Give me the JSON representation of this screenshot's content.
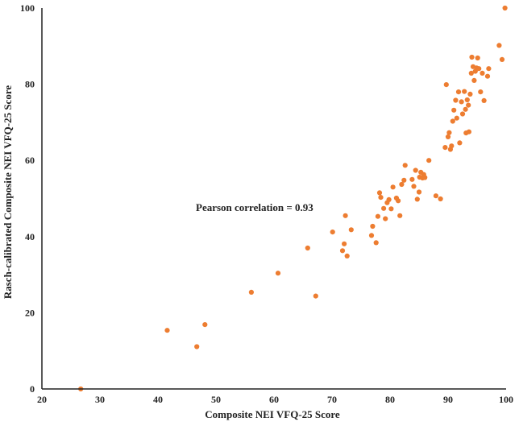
{
  "chart_data": {
    "type": "scatter",
    "title": "",
    "xlabel": "Composite NEI VFQ-25 Score",
    "ylabel": "Rasch-calibrated Composite NEI VFQ-25 Score",
    "xlim": [
      20,
      100
    ],
    "ylim": [
      0,
      100
    ],
    "xticks": [
      20,
      30,
      40,
      50,
      60,
      70,
      80,
      90,
      100
    ],
    "yticks": [
      0,
      20,
      40,
      60,
      80,
      100
    ],
    "grid": false,
    "annotation": "Pearson correlation = 0.93",
    "point_color": "#ED7D31",
    "points": [
      [
        26.7,
        0
      ],
      [
        41.6,
        15.4
      ],
      [
        46.7,
        11.1
      ],
      [
        48.1,
        16.9
      ],
      [
        56.1,
        25.4
      ],
      [
        60.7,
        30.4
      ],
      [
        65.8,
        37.0
      ],
      [
        67.2,
        24.4
      ],
      [
        70.1,
        41.2
      ],
      [
        71.8,
        36.3
      ],
      [
        72.1,
        38.1
      ],
      [
        72.3,
        45.5
      ],
      [
        72.6,
        34.9
      ],
      [
        73.3,
        41.8
      ],
      [
        76.8,
        40.3
      ],
      [
        77.0,
        42.7
      ],
      [
        77.6,
        38.4
      ],
      [
        77.9,
        45.3
      ],
      [
        78.2,
        51.5
      ],
      [
        78.4,
        50.3
      ],
      [
        78.9,
        47.4
      ],
      [
        79.2,
        44.7
      ],
      [
        79.5,
        48.9
      ],
      [
        79.8,
        49.7
      ],
      [
        80.2,
        47.3
      ],
      [
        80.5,
        53.0
      ],
      [
        81.1,
        50.1
      ],
      [
        81.4,
        49.4
      ],
      [
        81.7,
        45.5
      ],
      [
        82.0,
        53.7
      ],
      [
        82.4,
        54.8
      ],
      [
        82.6,
        58.7
      ],
      [
        83.8,
        55.0
      ],
      [
        84.1,
        53.2
      ],
      [
        84.4,
        57.4
      ],
      [
        84.7,
        49.8
      ],
      [
        85.0,
        51.7
      ],
      [
        85.1,
        55.6
      ],
      [
        85.3,
        56.9
      ],
      [
        85.6,
        55.4
      ],
      [
        85.8,
        56.3
      ],
      [
        86.0,
        55.5
      ],
      [
        86.7,
        60.0
      ],
      [
        87.9,
        50.7
      ],
      [
        88.7,
        49.9
      ],
      [
        89.5,
        63.4
      ],
      [
        89.7,
        79.9
      ],
      [
        90.0,
        66.2
      ],
      [
        90.2,
        67.3
      ],
      [
        90.4,
        62.9
      ],
      [
        90.6,
        63.8
      ],
      [
        90.8,
        70.3
      ],
      [
        91.0,
        73.2
      ],
      [
        91.3,
        75.8
      ],
      [
        91.5,
        71.1
      ],
      [
        91.8,
        78.0
      ],
      [
        92.0,
        64.6
      ],
      [
        92.3,
        75.4
      ],
      [
        92.5,
        72.2
      ],
      [
        92.8,
        78.1
      ],
      [
        93.0,
        73.4
      ],
      [
        93.1,
        67.2
      ],
      [
        93.3,
        75.9
      ],
      [
        93.5,
        74.5
      ],
      [
        93.6,
        67.5
      ],
      [
        93.8,
        77.4
      ],
      [
        94.0,
        82.9
      ],
      [
        94.1,
        87.1
      ],
      [
        94.3,
        84.6
      ],
      [
        94.5,
        81.0
      ],
      [
        94.7,
        83.4
      ],
      [
        94.9,
        84.3
      ],
      [
        95.1,
        86.9
      ],
      [
        95.3,
        84.1
      ],
      [
        95.6,
        78.0
      ],
      [
        95.9,
        82.9
      ],
      [
        96.2,
        75.7
      ],
      [
        96.8,
        82.1
      ],
      [
        97.0,
        84.1
      ],
      [
        98.8,
        90.2
      ],
      [
        99.3,
        86.5
      ],
      [
        99.8,
        100
      ]
    ]
  }
}
